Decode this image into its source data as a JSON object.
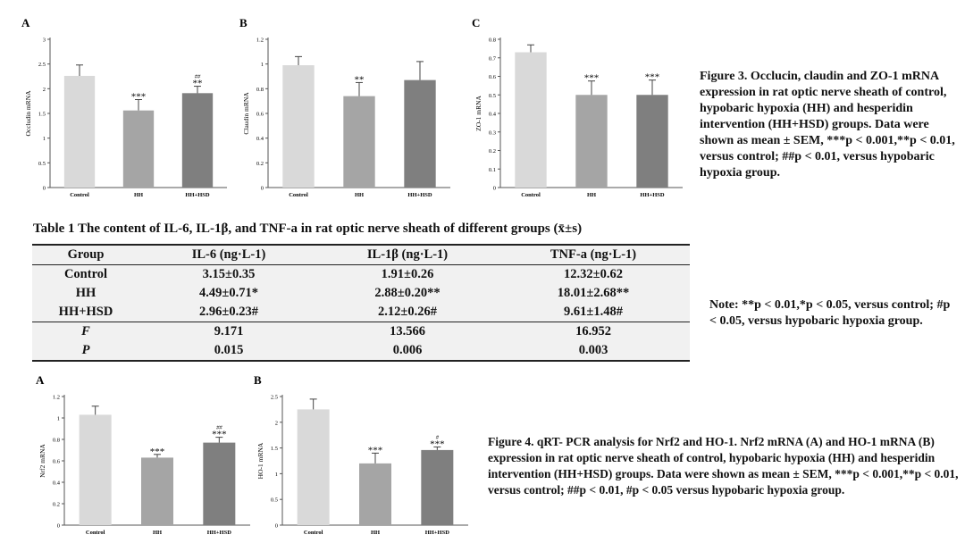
{
  "colors": {
    "control": "#d9d9d9",
    "hh": "#a5a5a5",
    "hsd": "#7f7f7f",
    "axis": "#555555"
  },
  "chart_data": [
    {
      "id": "fig3a",
      "panel": "A",
      "type": "bar",
      "categories": [
        "Control",
        "HH",
        "HH+HSD"
      ],
      "values": [
        2.26,
        1.56,
        1.91
      ],
      "errors": [
        0.22,
        0.22,
        0.14
      ],
      "annotations": [
        "",
        "***",
        "**"
      ],
      "annotations2": [
        "",
        "",
        "##"
      ],
      "ylabel": "Occludin mRNA",
      "ylim": [
        0,
        3
      ],
      "yticks": [
        "0",
        "0.5",
        "1",
        "1.5",
        "2",
        "2.5",
        "3"
      ]
    },
    {
      "id": "fig3b",
      "panel": "B",
      "type": "bar",
      "categories": [
        "Control",
        "HH",
        "HH+HSD"
      ],
      "values": [
        0.99,
        0.74,
        0.87
      ],
      "errors": [
        0.07,
        0.11,
        0.15
      ],
      "annotations": [
        "",
        "**",
        ""
      ],
      "annotations2": [
        "",
        "",
        ""
      ],
      "ylabel": "Claudin mRNA",
      "ylim": [
        0,
        1.2
      ],
      "yticks": [
        "0",
        "0.2",
        "0.4",
        "0.6",
        "0.8",
        "1",
        "1.2"
      ]
    },
    {
      "id": "fig3c",
      "panel": "C",
      "type": "bar",
      "categories": [
        "Control",
        "HH",
        "HH+HSD"
      ],
      "values": [
        0.73,
        0.5,
        0.5
      ],
      "errors": [
        0.04,
        0.075,
        0.08
      ],
      "annotations": [
        "",
        "***",
        "***"
      ],
      "annotations2": [
        "",
        "",
        ""
      ],
      "ylabel": "ZO-1 mRNA",
      "ylim": [
        0,
        0.8
      ],
      "yticks": [
        "0",
        "0.1",
        "0.2",
        "0.3",
        "0.4",
        "0.5",
        "0.6",
        "0.7",
        "0.8"
      ]
    },
    {
      "id": "fig4a",
      "panel": "A",
      "type": "bar",
      "categories": [
        "Control",
        "HH",
        "HH+HSD"
      ],
      "values": [
        1.03,
        0.63,
        0.77
      ],
      "errors": [
        0.08,
        0.03,
        0.05
      ],
      "annotations": [
        "",
        "***",
        "***"
      ],
      "annotations2": [
        "",
        "",
        "##"
      ],
      "ylabel": "Nrf2 mRNA",
      "ylim": [
        0,
        1.2
      ],
      "yticks": [
        "0",
        "0.2",
        "0.4",
        "0.6",
        "0.8",
        "1",
        "1.2"
      ]
    },
    {
      "id": "fig4b",
      "panel": "B",
      "type": "bar",
      "categories": [
        "Control",
        "HH",
        "HH+HSD"
      ],
      "values": [
        2.25,
        1.2,
        1.46
      ],
      "errors": [
        0.2,
        0.2,
        0.06
      ],
      "annotations": [
        "",
        "***",
        "***"
      ],
      "annotations2": [
        "",
        "",
        "#"
      ],
      "ylabel": "HO-1 mRNA",
      "ylim": [
        0,
        2.5
      ],
      "yticks": [
        "0",
        "0.5",
        "1",
        "1.5",
        "2",
        "2.5"
      ]
    }
  ],
  "captions": {
    "fig3": "Figure 3. Occlucin, claudin and ZO-1 mRNA expression in rat optic nerve sheath of control, hypobaric hypoxia (HH) and hesperidin intervention (HH+HSD) groups. Data were shown as mean ± SEM, ***p < 0.001,**p < 0.01, versus control; ##p < 0.01, versus hypobaric hypoxia group.",
    "fig4": "Figure 4. qRT- PCR analysis for Nrf2 and HO-1. Nrf2 mRNA (A) and HO-1 mRNA (B) expression in rat optic nerve sheath of control, hypobaric hypoxia (HH) and hesperidin intervention (HH+HSD) groups. Data were shown as mean ± SEM, ***p < 0.001,**p < 0.01, versus control; ##p < 0.01, #p < 0.05 versus hypobaric hypoxia group.",
    "note": "Note: **p < 0.01,*p < 0.05, versus control; #p < 0.05, versus hypobaric hypoxia group."
  },
  "table": {
    "title": "Table 1 The content of IL-6, IL-1β, and TNF-a in rat optic nerve sheath of different groups (x̄±s)",
    "headers": [
      "Group",
      "IL-6 (ng·L-1)",
      "IL-1β (ng·L-1)",
      "TNF-a (ng·L-1)"
    ],
    "rows": [
      [
        "Control",
        "3.15±0.35",
        "1.91±0.26",
        "12.32±0.62"
      ],
      [
        "HH",
        "4.49±0.71*",
        "2.88±0.20**",
        "18.01±2.68**"
      ],
      [
        "HH+HSD",
        "2.96±0.23#",
        "2.12±0.26#",
        "9.61±1.48#"
      ]
    ],
    "stats_rows": [
      [
        "F",
        "9.171",
        "13.566",
        "16.952"
      ],
      [
        "P",
        "0.015",
        "0.006",
        "0.003"
      ]
    ]
  }
}
